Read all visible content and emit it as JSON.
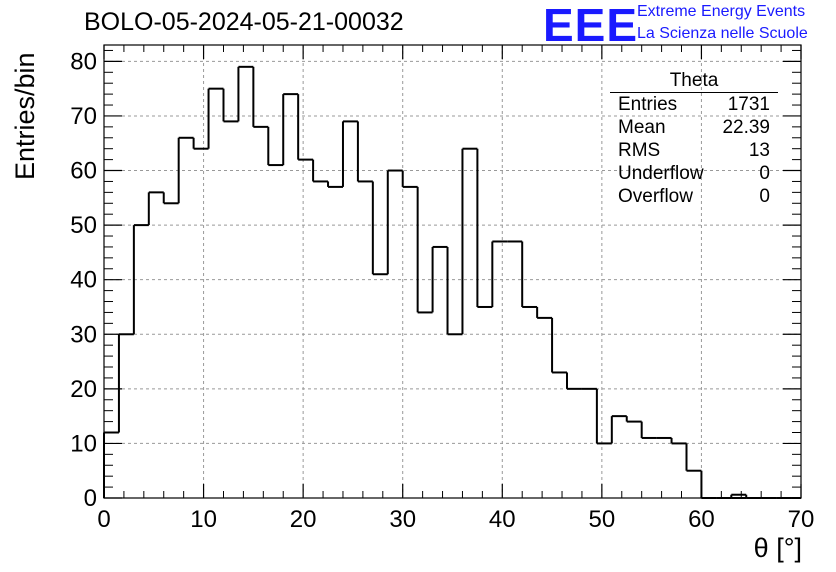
{
  "chart_data": {
    "type": "bar",
    "title": "BOLO-05-2024-05-21-00032",
    "xlabel": "θ [°]",
    "ylabel": "Entries/bin",
    "xlim": [
      0,
      70
    ],
    "ylim": [
      0,
      83
    ],
    "grid": true,
    "bin_width": 1.5,
    "bin_start": 0,
    "values": [
      12,
      30,
      50,
      56,
      54,
      66,
      64,
      75,
      69,
      79,
      68,
      61,
      74,
      62,
      58,
      57,
      69,
      58,
      41,
      60,
      57,
      34,
      46,
      30,
      64,
      35,
      47,
      47,
      35,
      33,
      23,
      20,
      20,
      10,
      15,
      14,
      11,
      11,
      10,
      5,
      0,
      0,
      0,
      0,
      0,
      0,
      0,
      0,
      0,
      0,
      0,
      0,
      0,
      0,
      0,
      0,
      0,
      0,
      0,
      0,
      0,
      0,
      0,
      0
    ],
    "xticks": [
      "0",
      "10",
      "20",
      "30",
      "40",
      "50",
      "60",
      "70"
    ],
    "yticks": [
      "0",
      "10",
      "20",
      "30",
      "40",
      "50",
      "60",
      "70",
      "80"
    ],
    "stats_box": {
      "title": "Theta",
      "rows": [
        {
          "label": "Entries",
          "value": "1731"
        },
        {
          "label": "Mean",
          "value": "22.39"
        },
        {
          "label": "RMS",
          "value": "13"
        },
        {
          "label": "Underflow",
          "value": "0"
        },
        {
          "label": "Overflow",
          "value": "0"
        }
      ]
    }
  },
  "logo": {
    "mark": "EEE",
    "line1": "Extreme Energy Events",
    "line2": "La Scienza nelle Scuole",
    "color": "#1a1aff"
  }
}
